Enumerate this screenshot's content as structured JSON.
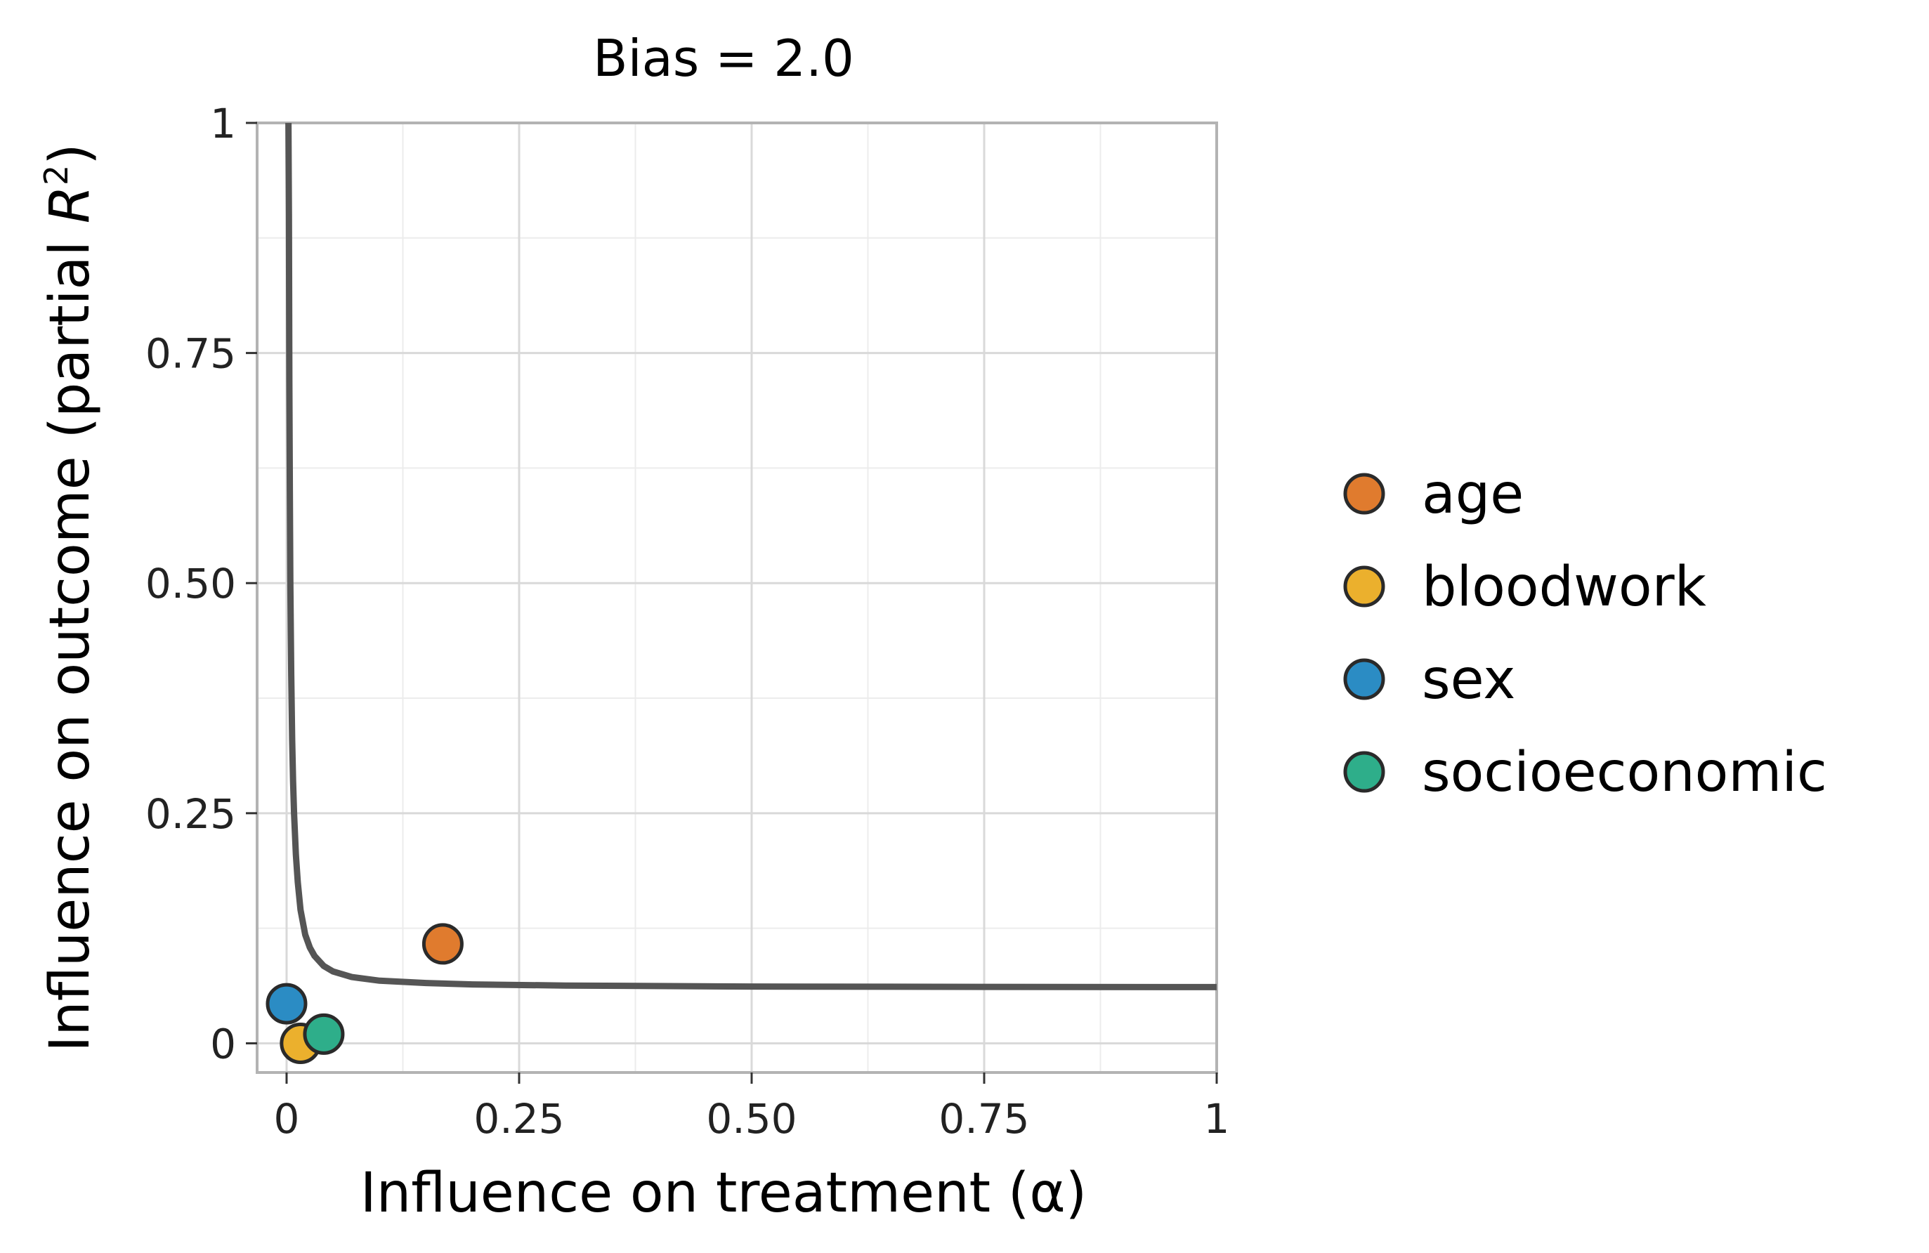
{
  "chart_data": {
    "type": "scatter",
    "title": "Bias = 2.0",
    "xlabel": "Influence on treatment (α)",
    "ylabel": {
      "prefix": "Influence on outcome (partial ",
      "variable": "R",
      "superscript": "2",
      "suffix": ")"
    },
    "xlim": [
      -0.0317,
      1
    ],
    "ylim": [
      -0.0317,
      1
    ],
    "x_ticks": [
      {
        "value": 0,
        "label": "0"
      },
      {
        "value": 0.25,
        "label": "0.25"
      },
      {
        "value": 0.5,
        "label": "0.50"
      },
      {
        "value": 0.75,
        "label": "0.75"
      },
      {
        "value": 1,
        "label": "1"
      }
    ],
    "y_ticks": [
      {
        "value": 0,
        "label": "0"
      },
      {
        "value": 0.25,
        "label": "0.25"
      },
      {
        "value": 0.5,
        "label": "0.50"
      },
      {
        "value": 0.75,
        "label": "0.75"
      },
      {
        "value": 1,
        "label": "1"
      }
    ],
    "grid": true,
    "legend_position": "right",
    "curve": {
      "color": "#555555",
      "points": [
        [
          0.002,
          1.0
        ],
        [
          0.0025,
          0.9
        ],
        [
          0.003,
          0.72
        ],
        [
          0.0035,
          0.6
        ],
        [
          0.004,
          0.5
        ],
        [
          0.005,
          0.4
        ],
        [
          0.006,
          0.33
        ],
        [
          0.007,
          0.285
        ],
        [
          0.008,
          0.25
        ],
        [
          0.01,
          0.205
        ],
        [
          0.012,
          0.175
        ],
        [
          0.015,
          0.145
        ],
        [
          0.02,
          0.118
        ],
        [
          0.025,
          0.104
        ],
        [
          0.03,
          0.095
        ],
        [
          0.04,
          0.084
        ],
        [
          0.05,
          0.078
        ],
        [
          0.07,
          0.072
        ],
        [
          0.1,
          0.068
        ],
        [
          0.15,
          0.0655
        ],
        [
          0.2,
          0.064
        ],
        [
          0.3,
          0.0628
        ],
        [
          0.5,
          0.0617
        ],
        [
          0.75,
          0.0613
        ],
        [
          1.0,
          0.0611
        ]
      ]
    },
    "series": [
      {
        "name": "age",
        "color": "#E07B2E",
        "x": 0.168,
        "y": 0.108
      },
      {
        "name": "bloodwork",
        "color": "#EBB02D",
        "x": 0.015,
        "y": 0.0
      },
      {
        "name": "sex",
        "color": "#2B8CC4",
        "x": 0.0,
        "y": 0.043
      },
      {
        "name": "socioeconomic",
        "color": "#2EAE8A",
        "x": 0.04,
        "y": 0.01
      }
    ]
  }
}
